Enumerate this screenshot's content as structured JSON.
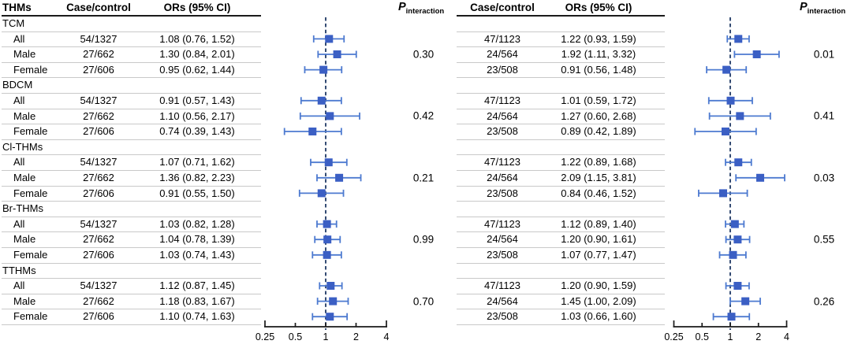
{
  "headers": {
    "left": {
      "thms": "THMs",
      "case_control": "Case/control",
      "ors": "ORs (95% CI)"
    },
    "right": {
      "case_control": "Case/control",
      "ors": "ORs (95% CI)"
    },
    "p_main": "P",
    "p_sub": "interaction"
  },
  "colors": {
    "marker": "#3b5fc4",
    "ci_line": "#4d7ad0",
    "reference_line": "#1f3864",
    "axis": "#1a1a1a",
    "rule_light": "#c9c9c9",
    "rule_dark": "#1a1a1a",
    "text": "#000000"
  },
  "chart_data": {
    "type": "forest",
    "x_axis": {
      "scale": "log2",
      "tick_values": [
        0.25,
        0.5,
        1,
        2,
        4
      ],
      "tick_labels": [
        "0.25",
        "0.5",
        "1",
        "2",
        "4"
      ],
      "reference_value": 1
    },
    "subgroups": [
      "All",
      "Male",
      "Female"
    ],
    "panels": [
      {
        "id": "left",
        "groups": [
          {
            "name": "TCM",
            "p_interaction": "0.30",
            "rows": [
              {
                "label": "All",
                "case_control": "54/1327",
                "or_text": "1.08 (0.76, 1.52)",
                "or": 1.08,
                "ci_low": 0.76,
                "ci_high": 1.52
              },
              {
                "label": "Male",
                "case_control": "27/662",
                "or_text": "1.30 (0.84, 2.01)",
                "or": 1.3,
                "ci_low": 0.84,
                "ci_high": 2.01
              },
              {
                "label": "Female",
                "case_control": "27/606",
                "or_text": "0.95 (0.62, 1.44)",
                "or": 0.95,
                "ci_low": 0.62,
                "ci_high": 1.44
              }
            ]
          },
          {
            "name": "BDCM",
            "p_interaction": "0.42",
            "rows": [
              {
                "label": "All",
                "case_control": "54/1327",
                "or_text": "0.91 (0.57, 1.43)",
                "or": 0.91,
                "ci_low": 0.57,
                "ci_high": 1.43
              },
              {
                "label": "Male",
                "case_control": "27/662",
                "or_text": "1.10 (0.56, 2.17)",
                "or": 1.1,
                "ci_low": 0.56,
                "ci_high": 2.17
              },
              {
                "label": "Female",
                "case_control": "27/606",
                "or_text": "0.74 (0.39, 1.43)",
                "or": 0.74,
                "ci_low": 0.39,
                "ci_high": 1.43
              }
            ]
          },
          {
            "name": "Cl-THMs",
            "p_interaction": "0.21",
            "rows": [
              {
                "label": "All",
                "case_control": "54/1327",
                "or_text": "1.07 (0.71, 1.62)",
                "or": 1.07,
                "ci_low": 0.71,
                "ci_high": 1.62
              },
              {
                "label": "Male",
                "case_control": "27/662",
                "or_text": "1.36 (0.82, 2.23)",
                "or": 1.36,
                "ci_low": 0.82,
                "ci_high": 2.23
              },
              {
                "label": "Female",
                "case_control": "27/606",
                "or_text": "0.91 (0.55, 1.50)",
                "or": 0.91,
                "ci_low": 0.55,
                "ci_high": 1.5
              }
            ]
          },
          {
            "name": "Br-THMs",
            "p_interaction": "0.99",
            "rows": [
              {
                "label": "All",
                "case_control": "54/1327",
                "or_text": "1.03 (0.82, 1.28)",
                "or": 1.03,
                "ci_low": 0.82,
                "ci_high": 1.28
              },
              {
                "label": "Male",
                "case_control": "27/662",
                "or_text": "1.04 (0.78, 1.39)",
                "or": 1.04,
                "ci_low": 0.78,
                "ci_high": 1.39
              },
              {
                "label": "Female",
                "case_control": "27/606",
                "or_text": "1.03 (0.74, 1.43)",
                "or": 1.03,
                "ci_low": 0.74,
                "ci_high": 1.43
              }
            ]
          },
          {
            "name": "TTHMs",
            "p_interaction": "0.70",
            "rows": [
              {
                "label": "All",
                "case_control": "54/1327",
                "or_text": "1.12 (0.87, 1.45)",
                "or": 1.12,
                "ci_low": 0.87,
                "ci_high": 1.45
              },
              {
                "label": "Male",
                "case_control": "27/662",
                "or_text": "1.18 (0.83, 1.67)",
                "or": 1.18,
                "ci_low": 0.83,
                "ci_high": 1.67
              },
              {
                "label": "Female",
                "case_control": "27/606",
                "or_text": "1.10 (0.74, 1.63)",
                "or": 1.1,
                "ci_low": 0.74,
                "ci_high": 1.63
              }
            ]
          }
        ]
      },
      {
        "id": "right",
        "groups": [
          {
            "name": "TCM",
            "p_interaction": "0.01",
            "rows": [
              {
                "label": "All",
                "case_control": "47/1123",
                "or_text": "1.22 (0.93, 1.59)",
                "or": 1.22,
                "ci_low": 0.93,
                "ci_high": 1.59
              },
              {
                "label": "Male",
                "case_control": "24/564",
                "or_text": "1.92 (1.11, 3.32)",
                "or": 1.92,
                "ci_low": 1.11,
                "ci_high": 3.32
              },
              {
                "label": "Female",
                "case_control": "23/508",
                "or_text": "0.91 (0.56, 1.48)",
                "or": 0.91,
                "ci_low": 0.56,
                "ci_high": 1.48
              }
            ]
          },
          {
            "name": "BDCM",
            "p_interaction": "0.41",
            "rows": [
              {
                "label": "All",
                "case_control": "47/1123",
                "or_text": "1.01 (0.59, 1.72)",
                "or": 1.01,
                "ci_low": 0.59,
                "ci_high": 1.72
              },
              {
                "label": "Male",
                "case_control": "24/564",
                "or_text": "1.27 (0.60, 2.68)",
                "or": 1.27,
                "ci_low": 0.6,
                "ci_high": 2.68
              },
              {
                "label": "Female",
                "case_control": "23/508",
                "or_text": "0.89 (0.42, 1.89)",
                "or": 0.89,
                "ci_low": 0.42,
                "ci_high": 1.89
              }
            ]
          },
          {
            "name": "Cl-THMs",
            "p_interaction": "0.03",
            "rows": [
              {
                "label": "All",
                "case_control": "47/1123",
                "or_text": "1.22 (0.89, 1.68)",
                "or": 1.22,
                "ci_low": 0.89,
                "ci_high": 1.68
              },
              {
                "label": "Male",
                "case_control": "24/564",
                "or_text": "2.09 (1.15, 3.81)",
                "or": 2.09,
                "ci_low": 1.15,
                "ci_high": 3.81
              },
              {
                "label": "Female",
                "case_control": "23/508",
                "or_text": "0.84 (0.46, 1.52)",
                "or": 0.84,
                "ci_low": 0.46,
                "ci_high": 1.52
              }
            ]
          },
          {
            "name": "Br-THMs",
            "p_interaction": "0.55",
            "rows": [
              {
                "label": "All",
                "case_control": "47/1123",
                "or_text": "1.12 (0.89, 1.40)",
                "or": 1.12,
                "ci_low": 0.89,
                "ci_high": 1.4
              },
              {
                "label": "Male",
                "case_control": "24/564",
                "or_text": "1.20 (0.90, 1.61)",
                "or": 1.2,
                "ci_low": 0.9,
                "ci_high": 1.61
              },
              {
                "label": "Female",
                "case_control": "23/508",
                "or_text": "1.07 (0.77, 1.47)",
                "or": 1.07,
                "ci_low": 0.77,
                "ci_high": 1.47
              }
            ]
          },
          {
            "name": "TTHMs",
            "p_interaction": "0.26",
            "rows": [
              {
                "label": "All",
                "case_control": "47/1123",
                "or_text": "1.20 (0.90, 1.59)",
                "or": 1.2,
                "ci_low": 0.9,
                "ci_high": 1.59
              },
              {
                "label": "Male",
                "case_control": "24/564",
                "or_text": "1.45 (1.00, 2.09)",
                "or": 1.45,
                "ci_low": 1.0,
                "ci_high": 2.09
              },
              {
                "label": "Female",
                "case_control": "23/508",
                "or_text": "1.03 (0.66, 1.60)",
                "or": 1.03,
                "ci_low": 0.66,
                "ci_high": 1.6
              }
            ]
          }
        ]
      }
    ]
  }
}
